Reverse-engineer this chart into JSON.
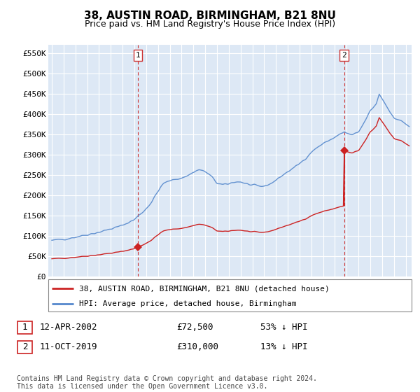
{
  "title": "38, AUSTIN ROAD, BIRMINGHAM, B21 8NU",
  "subtitle": "Price paid vs. HM Land Registry's House Price Index (HPI)",
  "title_fontsize": 11,
  "subtitle_fontsize": 9,
  "ylim": [
    0,
    570000
  ],
  "yticks": [
    0,
    50000,
    100000,
    150000,
    200000,
    250000,
    300000,
    350000,
    400000,
    450000,
    500000,
    550000
  ],
  "ytick_labels": [
    "£0",
    "£50K",
    "£100K",
    "£150K",
    "£200K",
    "£250K",
    "£300K",
    "£350K",
    "£400K",
    "£450K",
    "£500K",
    "£550K"
  ],
  "xlim_start": 1994.7,
  "xlim_end": 2025.5,
  "background_color": "#ffffff",
  "plot_bg_color": "#dde8f5",
  "grid_color": "#ffffff",
  "hpi_color": "#5588cc",
  "price_color": "#cc2222",
  "dashed_line_color": "#cc3333",
  "sale1_x": 2002.28,
  "sale1_y": 72500,
  "sale1_label": "1",
  "sale2_x": 2019.78,
  "sale2_y": 310000,
  "sale2_label": "2",
  "legend_label_red": "38, AUSTIN ROAD, BIRMINGHAM, B21 8NU (detached house)",
  "legend_label_blue": "HPI: Average price, detached house, Birmingham",
  "note1_num": "1",
  "note1_date": "12-APR-2002",
  "note1_price": "£72,500",
  "note1_hpi": "53% ↓ HPI",
  "note2_num": "2",
  "note2_date": "11-OCT-2019",
  "note2_price": "£310,000",
  "note2_hpi": "13% ↓ HPI",
  "footer": "Contains HM Land Registry data © Crown copyright and database right 2024.\nThis data is licensed under the Open Government Licence v3.0."
}
